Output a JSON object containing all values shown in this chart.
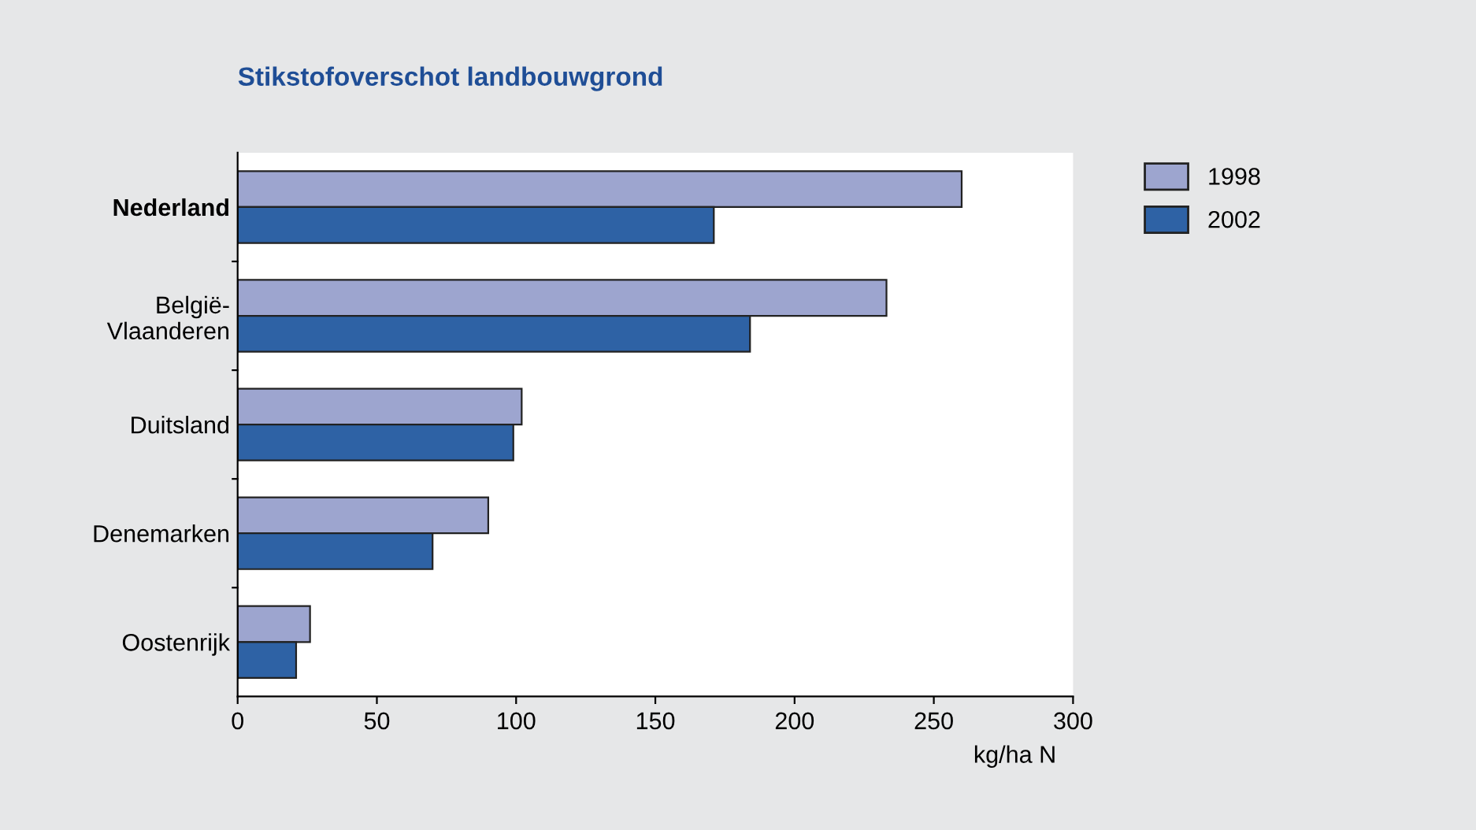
{
  "chart_data": {
    "type": "bar",
    "orientation": "horizontal",
    "title": "Stikstofoverschot landbouwgrond",
    "xlabel": "kg/ha N",
    "categories": [
      "Nederland",
      "België-\nVlaanderen",
      "Duitsland",
      "Denemarken",
      "Oostenrijk"
    ],
    "series": [
      {
        "name": "1998",
        "color": "#9da5cf",
        "values": [
          260,
          233,
          102,
          90,
          26
        ]
      },
      {
        "name": "2002",
        "color": "#2e62a5",
        "values": [
          171,
          184,
          99,
          70,
          21
        ]
      }
    ],
    "xlim": [
      0,
      300
    ],
    "xticks": [
      0,
      50,
      100,
      150,
      200,
      250,
      300
    ],
    "grid": false,
    "legend": "top right"
  }
}
